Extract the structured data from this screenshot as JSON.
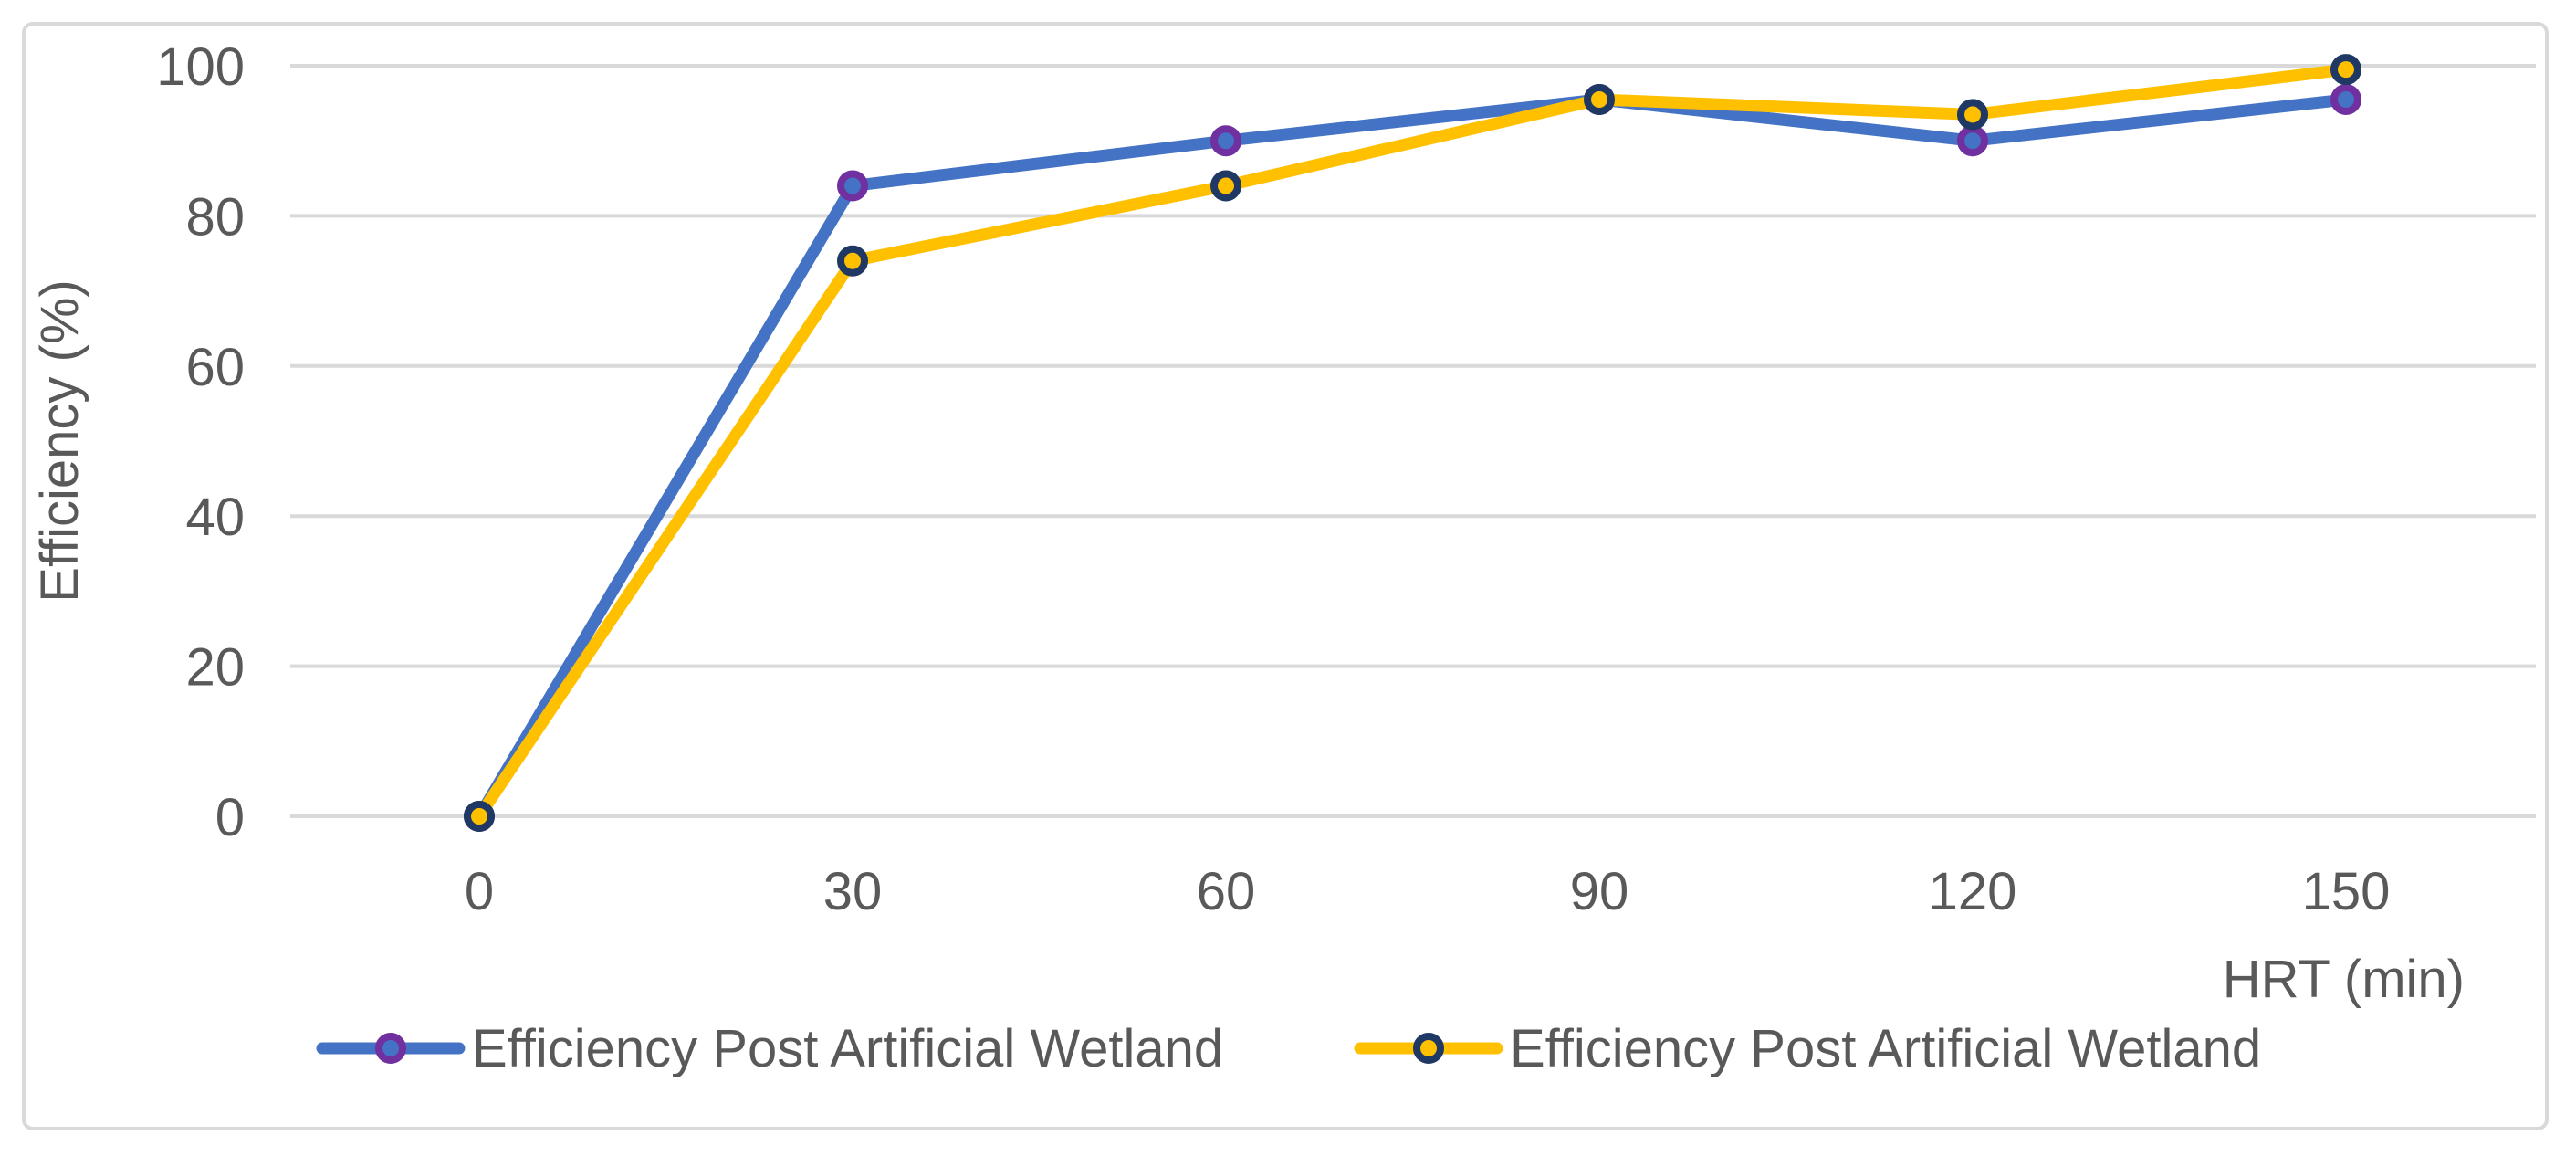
{
  "chart_data": {
    "type": "line",
    "x": [
      0,
      30,
      60,
      90,
      120,
      150
    ],
    "x_tick_labels": [
      "0",
      "30",
      "60",
      "90",
      "120",
      "150"
    ],
    "y_ticks": [
      0,
      20,
      40,
      60,
      80,
      100
    ],
    "ylim": [
      0,
      100
    ],
    "xlabel": "HRT (min)",
    "ylabel": "Efficiency (%)",
    "grid": true,
    "legend_position": "bottom",
    "series": [
      {
        "name": "Efficiency Post Artificial Wetland",
        "values": [
          0,
          84,
          90,
          95.5,
          90,
          95.5
        ],
        "line_color": "#4472C4",
        "marker_fill": "#4472C4",
        "marker_ring": "#7030A0"
      },
      {
        "name": "Efficiency Post Artificial Wetland",
        "values": [
          0,
          74,
          84,
          95.5,
          93.5,
          99.5
        ],
        "line_color": "#FFC000",
        "marker_fill": "#FFC000",
        "marker_ring": "#1F3864"
      }
    ],
    "colors": {
      "gridline": "#D9D9D9",
      "frame_border": "#D9D9D9",
      "axis_text": "#595959",
      "background": "#FFFFFF"
    }
  }
}
